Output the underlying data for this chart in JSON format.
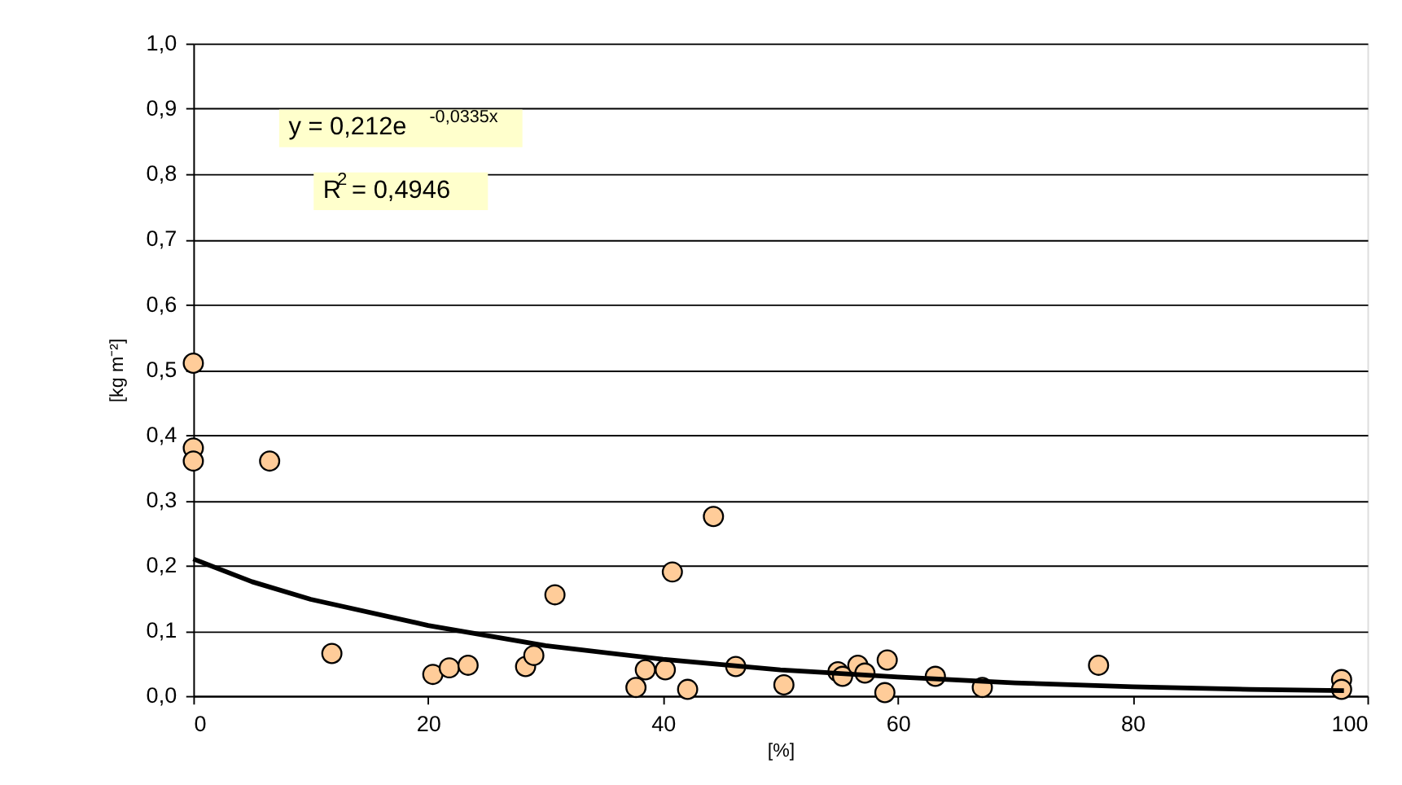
{
  "chart_data": {
    "type": "scatter",
    "xlabel": "[%]",
    "ylabel": "[kg m⁻²]",
    "xlim": [
      0,
      100
    ],
    "xticks": [
      0,
      20,
      40,
      60,
      80,
      100
    ],
    "ylim": [
      0,
      1
    ],
    "yticks": [
      {
        "value": 0,
        "label": "0,0"
      },
      {
        "value": 0.1,
        "label": "0,1"
      },
      {
        "value": 0.2,
        "label": "0,2"
      },
      {
        "value": 0.3,
        "label": "0,3"
      },
      {
        "value": 0.4,
        "label": "0,4"
      },
      {
        "value": 0.5,
        "label": "0,5"
      },
      {
        "value": 0.6,
        "label": "0,6"
      },
      {
        "value": 0.7,
        "label": "0,7"
      },
      {
        "value": 0.8,
        "label": "0,8"
      },
      {
        "value": 0.9,
        "label": "0,9"
      },
      {
        "value": 1,
        "label": "1,0"
      }
    ],
    "grid": "y",
    "annotations": [
      "y = 0,212e$^{-0,0335x}$",
      "R$^{2}$ = 0,4946"
    ],
    "series": [
      {
        "marker": "circle",
        "color": "#ffcc99",
        "x": [
          0,
          0,
          0,
          6.5,
          11.8,
          20.4,
          21.8,
          23.4,
          28.3,
          29,
          30.8,
          37.7,
          38.5,
          40.2,
          40.8,
          42.1,
          44.3,
          46.2,
          50.3,
          54.9,
          55.3,
          56.6,
          57.2,
          58.9,
          59.1,
          63.2,
          67.2,
          77.1,
          97.8,
          97.8
        ],
        "values": [
          0.51,
          0.38,
          0.36,
          0.36,
          0.065,
          0.033,
          0.043,
          0.047,
          0.045,
          0.062,
          0.155,
          0.013,
          0.04,
          0.04,
          0.19,
          0.01,
          0.275,
          0.045,
          0.017,
          0.037,
          0.03,
          0.047,
          0.035,
          0.005,
          0.055,
          0.03,
          0.013,
          0.047,
          0.025,
          0.01
        ]
      },
      {
        "type": "line",
        "color": "#000000",
        "x": [
          0,
          5,
          10,
          20,
          30,
          40,
          50,
          60,
          70,
          80,
          90,
          98
        ],
        "values": [
          0.21,
          0.175,
          0.148,
          0.108,
          0.077,
          0.056,
          0.04,
          0.029,
          0.02,
          0.014,
          0.01,
          0.008
        ]
      }
    ]
  }
}
